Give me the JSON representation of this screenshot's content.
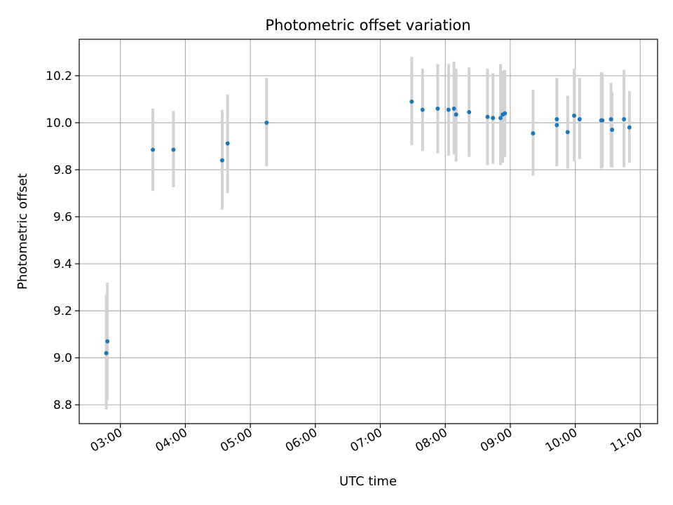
{
  "chart_data": {
    "type": "scatter",
    "title": "Photometric offset variation",
    "xlabel": "UTC time",
    "ylabel": "Photometric offset",
    "x_ticks": [
      "03:00",
      "04:00",
      "05:00",
      "06:00",
      "07:00",
      "08:00",
      "09:00",
      "10:00",
      "11:00"
    ],
    "y_ticks": [
      "8.8",
      "9.0",
      "9.2",
      "9.4",
      "9.6",
      "9.8",
      "10.0",
      "10.2"
    ],
    "xlim": [
      "02:22",
      "11:16"
    ],
    "ylim": [
      8.72,
      10.355
    ],
    "grid": true,
    "colors": {
      "points": "#1f77b4",
      "error_bars": "#d3d3d3",
      "grid": "#b0b0b0"
    },
    "points": [
      {
        "x": "02:48",
        "y": 9.07,
        "y_low": 8.82,
        "y_high": 9.32
      },
      {
        "x": "02:47",
        "y": 9.02,
        "y_low": 8.78,
        "y_high": 9.27
      },
      {
        "x": "03:30",
        "y": 9.885,
        "y_low": 9.71,
        "y_high": 10.06
      },
      {
        "x": "03:49",
        "y": 9.885,
        "y_low": 9.725,
        "y_high": 10.05
      },
      {
        "x": "04:34",
        "y": 9.84,
        "y_low": 9.63,
        "y_high": 10.055
      },
      {
        "x": "04:39",
        "y": 9.912,
        "y_low": 9.7,
        "y_high": 10.12
      },
      {
        "x": "05:15",
        "y": 10.0,
        "y_low": 9.815,
        "y_high": 10.19
      },
      {
        "x": "07:29",
        "y": 10.09,
        "y_low": 9.905,
        "y_high": 10.28
      },
      {
        "x": "07:39",
        "y": 10.055,
        "y_low": 9.88,
        "y_high": 10.23
      },
      {
        "x": "07:53",
        "y": 10.06,
        "y_low": 9.87,
        "y_high": 10.25
      },
      {
        "x": "08:03",
        "y": 10.055,
        "y_low": 9.86,
        "y_high": 10.25
      },
      {
        "x": "08:08",
        "y": 10.06,
        "y_low": 9.865,
        "y_high": 10.26
      },
      {
        "x": "08:10",
        "y": 10.035,
        "y_low": 9.835,
        "y_high": 10.23
      },
      {
        "x": "08:22",
        "y": 10.045,
        "y_low": 9.855,
        "y_high": 10.235
      },
      {
        "x": "08:39",
        "y": 10.025,
        "y_low": 9.82,
        "y_high": 10.23
      },
      {
        "x": "08:44",
        "y": 10.02,
        "y_low": 9.825,
        "y_high": 10.21
      },
      {
        "x": "08:51",
        "y": 10.02,
        "y_low": 9.82,
        "y_high": 10.25
      },
      {
        "x": "08:53",
        "y": 10.035,
        "y_low": 9.83,
        "y_high": 10.22
      },
      {
        "x": "08:55",
        "y": 10.04,
        "y_low": 9.855,
        "y_high": 10.225
      },
      {
        "x": "09:21",
        "y": 9.955,
        "y_low": 9.775,
        "y_high": 10.14
      },
      {
        "x": "09:43",
        "y": 10.015,
        "y_low": 9.82,
        "y_high": 10.19
      },
      {
        "x": "09:43",
        "y": 9.99,
        "y_low": 9.815,
        "y_high": 10.17
      },
      {
        "x": "09:53",
        "y": 9.96,
        "y_low": 9.805,
        "y_high": 10.115
      },
      {
        "x": "09:59",
        "y": 10.03,
        "y_low": 9.835,
        "y_high": 10.23
      },
      {
        "x": "10:04",
        "y": 10.015,
        "y_low": 9.845,
        "y_high": 10.19
      },
      {
        "x": "10:24",
        "y": 10.01,
        "y_low": 9.805,
        "y_high": 10.215
      },
      {
        "x": "10:25",
        "y": 10.01,
        "y_low": 9.81,
        "y_high": 10.21
      },
      {
        "x": "10:33",
        "y": 10.015,
        "y_low": 9.81,
        "y_high": 10.17
      },
      {
        "x": "10:34",
        "y": 9.97,
        "y_low": 9.81,
        "y_high": 10.13
      },
      {
        "x": "10:45",
        "y": 10.015,
        "y_low": 9.81,
        "y_high": 10.225
      },
      {
        "x": "10:50",
        "y": 9.98,
        "y_low": 9.83,
        "y_high": 10.135
      }
    ]
  }
}
